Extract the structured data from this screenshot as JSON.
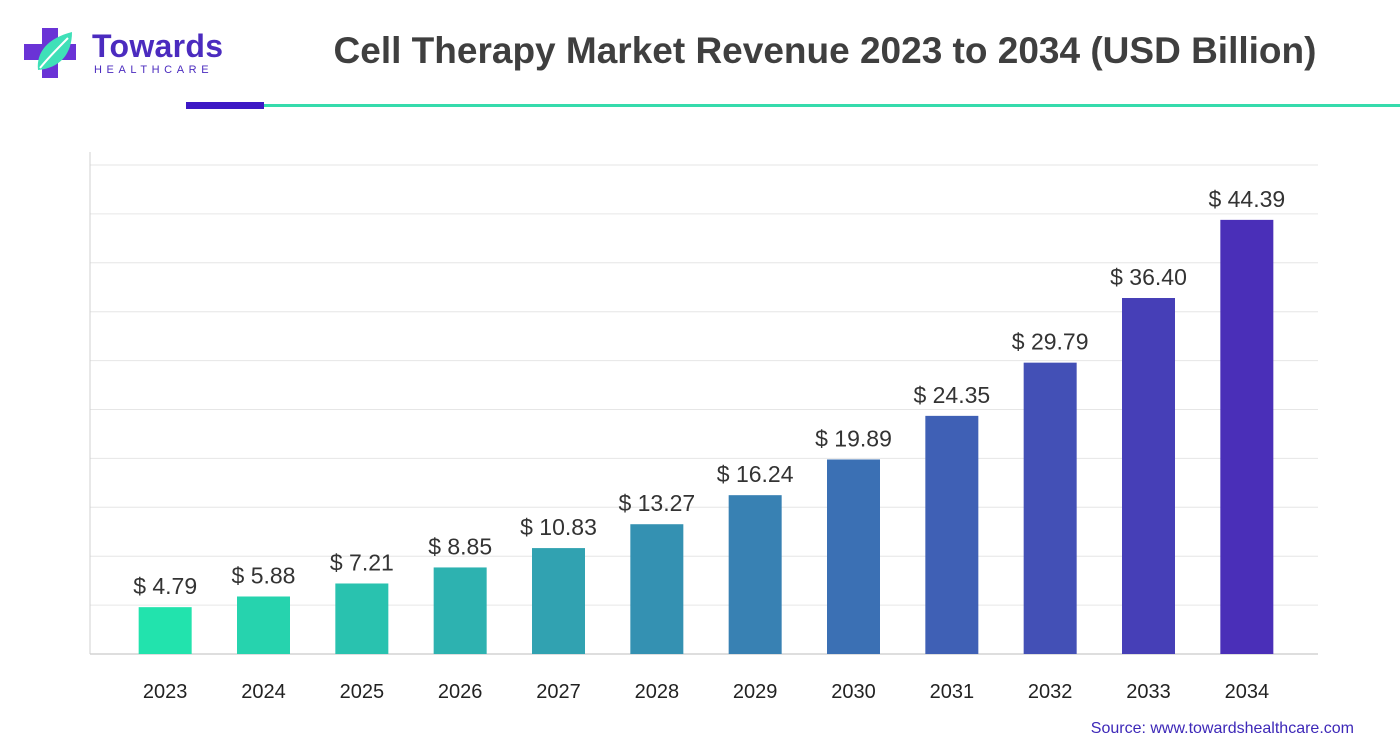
{
  "header": {
    "brand_name": "Towards",
    "brand_sub": "HEALTHCARE",
    "title": "Cell Therapy Market Revenue 2023 to 2034 (USD Billion)"
  },
  "footer": {
    "source": "Source: www.towardshealthcare.com"
  },
  "colors": {
    "brand": "#4b2bbf",
    "accent_teal": "#35dbac",
    "bar_start": "#22e3ad",
    "bar_end": "#4a2fb8",
    "title_text": "#3f3f3f",
    "grid": "#e6e6e6"
  },
  "chart_data": {
    "type": "bar",
    "title": "Cell Therapy Market Revenue 2023 to 2034 (USD Billion)",
    "xlabel": "",
    "ylabel": "",
    "categories": [
      "2023",
      "2024",
      "2025",
      "2026",
      "2027",
      "2028",
      "2029",
      "2030",
      "2031",
      "2032",
      "2033",
      "2034"
    ],
    "values": [
      4.79,
      5.88,
      7.21,
      8.85,
      10.83,
      13.27,
      16.24,
      19.89,
      24.35,
      29.79,
      36.4,
      44.39
    ],
    "value_labels": [
      "$ 4.79",
      "$ 5.88",
      "$ 7.21",
      "$ 8.85",
      "$ 10.83",
      "$ 13.27",
      "$ 16.24",
      "$ 19.89",
      "$ 24.35",
      "$ 29.79",
      "$ 36.40",
      "$ 44.39"
    ],
    "ylim": [
      0,
      50
    ],
    "grid": true,
    "legend": "none",
    "bar_color_gradient": [
      "#22e3ad",
      "#4a2fb8"
    ]
  }
}
